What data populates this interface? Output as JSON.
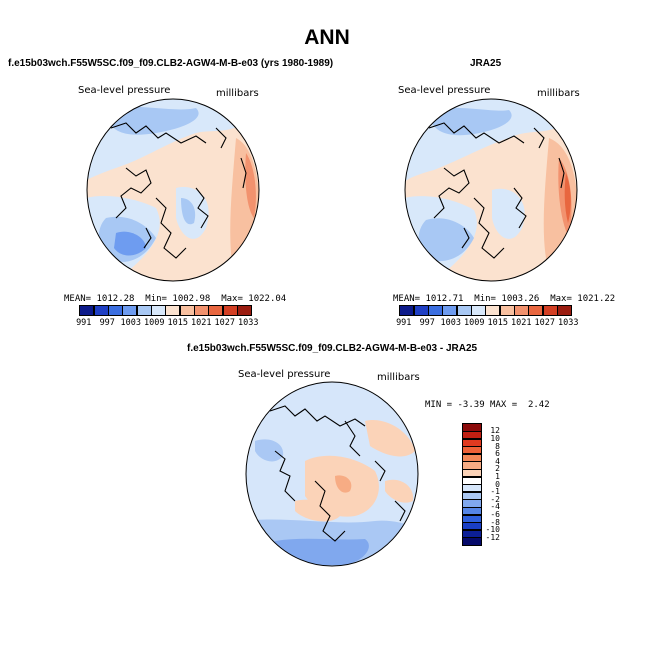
{
  "title": "ANN",
  "panels": {
    "model": {
      "title": "f.e15b03wch.F55W5SC.f09_f09.CLB2-AGW4-M-B-e03 (yrs 1980-1989)",
      "variable": "Sea-level pressure",
      "units": "millibars",
      "mean_label": "MEAN=",
      "mean": "1012.28",
      "min_label": "Min=",
      "min": "1002.98",
      "max_label": "Max=",
      "max": "1022.04"
    },
    "obs": {
      "title": "JRA25",
      "variable": "Sea-level pressure",
      "units": "millibars",
      "mean_label": "MEAN=",
      "mean": "1012.71",
      "min_label": "Min=",
      "min": "1003.26",
      "max_label": "Max=",
      "max": "1021.22"
    },
    "diff": {
      "title": "f.e15b03wch.F55W5SC.f09_f09.CLB2-AGW4-M-B-e03 - JRA25",
      "variable": "Sea-level pressure",
      "units": "millibars",
      "min_label": "MIN =",
      "min": "-3.39",
      "max_label": "MAX =",
      "max": "2.42"
    }
  },
  "abs_colorbar": {
    "ticks": [
      "991",
      "997",
      "1003",
      "1009",
      "1015",
      "1021",
      "1027",
      "1033"
    ],
    "colors": [
      "#0c1a8a",
      "#1f3fc4",
      "#3b6ee0",
      "#6e9cf0",
      "#a8c8f4",
      "#d8e8fa",
      "#fbe2cf",
      "#f8c0a0",
      "#f2926e",
      "#e8663f",
      "#d23f24",
      "#9a1c10"
    ]
  },
  "diff_colorbar": {
    "ticks": [
      "12",
      "10",
      "8",
      "6",
      "4",
      "2",
      "1",
      "0",
      "-1",
      "-2",
      "-4",
      "-6",
      "-8",
      "-10",
      "-12"
    ],
    "colors": [
      "#8b0a0a",
      "#c01f12",
      "#e03a20",
      "#ee6238",
      "#f38858",
      "#f7ac84",
      "#fbd3b8",
      "#ffffff",
      "#d6e6fa",
      "#aac8f4",
      "#80a8ee",
      "#5586e6",
      "#2f60dc",
      "#1a3fc6",
      "#0c1f96",
      "#050a6a"
    ]
  }
}
